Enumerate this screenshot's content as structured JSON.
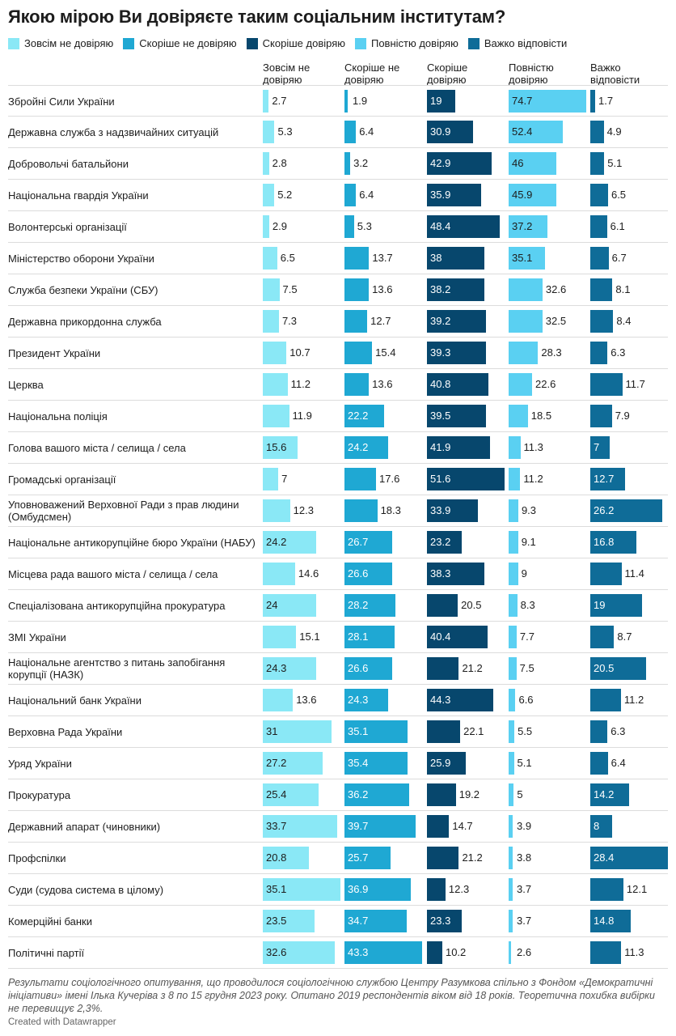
{
  "chart_data": {
    "type": "table",
    "title": "Якою мірою Ви довіряєте таким соціальним інститутам?",
    "series": [
      {
        "name": "Зовсім не довіряю",
        "header": "Зовсім не довіряю",
        "color": "#8ae8f6",
        "max": 35.1
      },
      {
        "name": "Скоріше не довіряю",
        "header": "Скоріше не довіряю",
        "color": "#1fa8d3",
        "max": 43.3
      },
      {
        "name": "Скоріше довіряю",
        "header": "Скоріше довіряю",
        "color": "#07476d",
        "max": 51.6
      },
      {
        "name": "Повністю довіряю",
        "header": "Повністю довіряю",
        "color": "#5ad0f2",
        "max": 74.7
      },
      {
        "name": "Важко відповісти",
        "header": "Важко відповісти",
        "color": "#0f6c98",
        "max": 28.4
      }
    ],
    "rows": [
      {
        "label": "Збройні Сили України",
        "values": [
          2.7,
          1.9,
          19,
          74.7,
          1.7
        ]
      },
      {
        "label": "Державна служба з надзвичайних ситуацій",
        "values": [
          5.3,
          6.4,
          30.9,
          52.4,
          4.9
        ]
      },
      {
        "label": "Добровольчі батальйони",
        "values": [
          2.8,
          3.2,
          42.9,
          46,
          5.1
        ]
      },
      {
        "label": "Національна гвардія України",
        "values": [
          5.2,
          6.4,
          35.9,
          45.9,
          6.5
        ]
      },
      {
        "label": "Волонтерські організації",
        "values": [
          2.9,
          5.3,
          48.4,
          37.2,
          6.1
        ]
      },
      {
        "label": "Міністерство оборони України",
        "values": [
          6.5,
          13.7,
          38,
          35.1,
          6.7
        ]
      },
      {
        "label": "Служба безпеки України (СБУ)",
        "values": [
          7.5,
          13.6,
          38.2,
          32.6,
          8.1
        ]
      },
      {
        "label": "Державна прикордонна служба",
        "values": [
          7.3,
          12.7,
          39.2,
          32.5,
          8.4
        ]
      },
      {
        "label": "Президент України",
        "values": [
          10.7,
          15.4,
          39.3,
          28.3,
          6.3
        ]
      },
      {
        "label": "Церква",
        "values": [
          11.2,
          13.6,
          40.8,
          22.6,
          11.7
        ]
      },
      {
        "label": "Національна поліція",
        "values": [
          11.9,
          22.2,
          39.5,
          18.5,
          7.9
        ]
      },
      {
        "label": "Голова вашого міста / селища / села",
        "values": [
          15.6,
          24.2,
          41.9,
          11.3,
          7
        ]
      },
      {
        "label": "Громадські організації",
        "values": [
          7,
          17.6,
          51.6,
          11.2,
          12.7
        ]
      },
      {
        "label": "Уповноважений Верховної Ради з прав людини (Омбудсмен)",
        "values": [
          12.3,
          18.3,
          33.9,
          9.3,
          26.2
        ]
      },
      {
        "label": "Національне антикорупційне бюро України (НАБУ)",
        "values": [
          24.2,
          26.7,
          23.2,
          9.1,
          16.8
        ]
      },
      {
        "label": "Місцева рада вашого міста / селища / села",
        "values": [
          14.6,
          26.6,
          38.3,
          9,
          11.4
        ]
      },
      {
        "label": "Спеціалізована антикорупційна прокуратура",
        "values": [
          24,
          28.2,
          20.5,
          8.3,
          19
        ]
      },
      {
        "label": "ЗМІ України",
        "values": [
          15.1,
          28.1,
          40.4,
          7.7,
          8.7
        ]
      },
      {
        "label": "Національне агентство з питань запобігання корупції (НАЗК)",
        "values": [
          24.3,
          26.6,
          21.2,
          7.5,
          20.5
        ]
      },
      {
        "label": "Національний банк України",
        "values": [
          13.6,
          24.3,
          44.3,
          6.6,
          11.2
        ]
      },
      {
        "label": "Верховна Рада України",
        "values": [
          31,
          35.1,
          22.1,
          5.5,
          6.3
        ]
      },
      {
        "label": "Уряд України",
        "values": [
          27.2,
          35.4,
          25.9,
          5.1,
          6.4
        ]
      },
      {
        "label": "Прокуратура",
        "values": [
          25.4,
          36.2,
          19.2,
          5,
          14.2
        ]
      },
      {
        "label": "Державний апарат (чиновники)",
        "values": [
          33.7,
          39.7,
          14.7,
          3.9,
          8
        ]
      },
      {
        "label": "Профспілки",
        "values": [
          20.8,
          25.7,
          21.2,
          3.8,
          28.4
        ]
      },
      {
        "label": "Суди (судова система в цілому)",
        "values": [
          35.1,
          36.9,
          12.3,
          3.7,
          12.1
        ]
      },
      {
        "label": "Комерційні банки",
        "values": [
          23.5,
          34.7,
          23.3,
          3.7,
          14.8
        ]
      },
      {
        "label": "Політичні партії",
        "values": [
          32.6,
          43.3,
          10.2,
          2.6,
          11.3
        ]
      }
    ],
    "footnote": "Результати соціологічного опитування, що проводилося соціологічною службою Центру Разумкова спільно з Фондом «Демократичні ініціативи» імені Ілька Кучеріва з 8 по 15 грудня 2023 року. Опитано 2019 респондентів віком від 18 років. Теоретична похибка вибірки не перевищує 2,3%.",
    "credit": "Created with Datawrapper"
  }
}
